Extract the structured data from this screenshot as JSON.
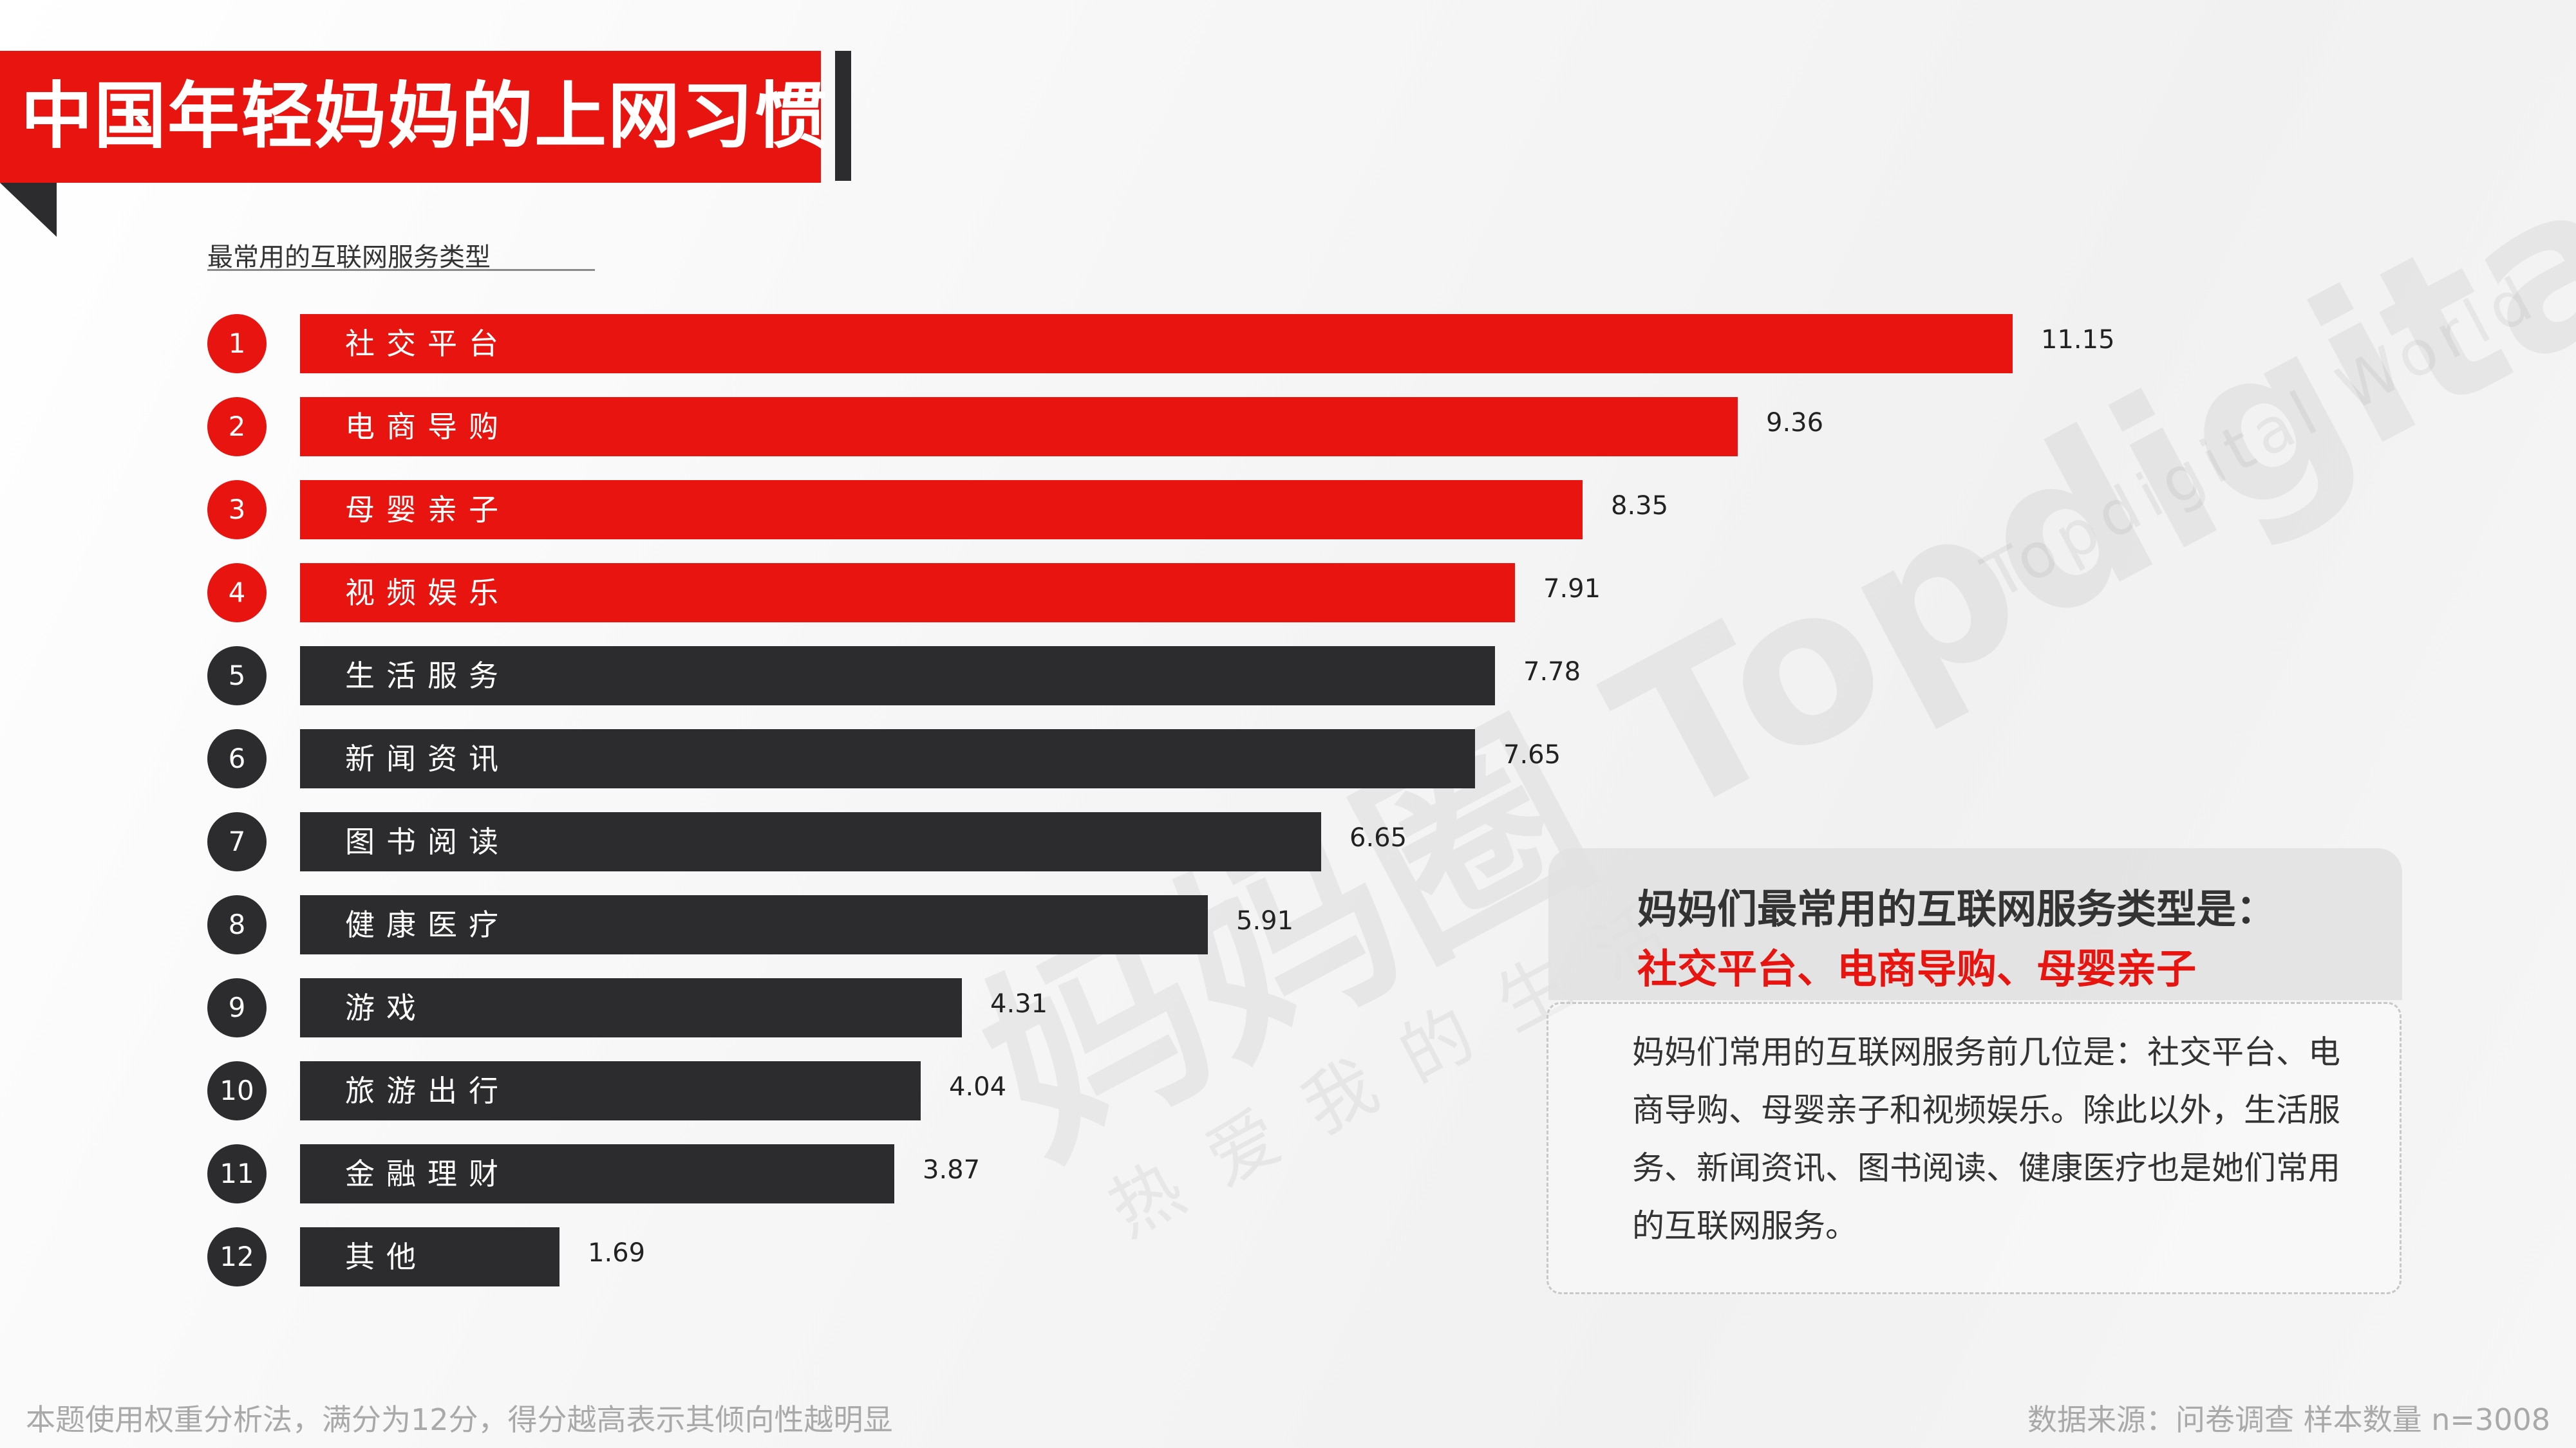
{
  "title": "中国年轻妈妈的上网习惯",
  "subtitle": "最常用的互联网服务类型",
  "colors": {
    "accent": "#e8140f",
    "dark": "#2c2c2e"
  },
  "chart_data": {
    "type": "bar",
    "orientation": "horizontal",
    "ranks": [
      "1",
      "2",
      "3",
      "4",
      "5",
      "6",
      "7",
      "8",
      "9",
      "10",
      "11",
      "12"
    ],
    "categories": [
      "社交平台",
      "电商导购",
      "母婴亲子",
      "视频娱乐",
      "生活服务",
      "新闻资讯",
      "图书阅读",
      "健康医疗",
      "游戏",
      "旅游出行",
      "金融理财",
      "其他"
    ],
    "values": [
      11.15,
      9.36,
      8.35,
      7.91,
      7.78,
      7.65,
      6.65,
      5.91,
      4.31,
      4.04,
      3.87,
      1.69
    ],
    "value_labels": [
      "11.15",
      "9.36",
      "8.35",
      "7.91",
      "7.78",
      "7.65",
      "6.65",
      "5.91",
      "4.31",
      "4.04",
      "3.87",
      "1.69"
    ],
    "highlight_top": 4,
    "xlim": [
      0,
      12
    ],
    "grid": false,
    "legend": "none"
  },
  "callout": {
    "headline": "妈妈们最常用的互联网服务类型是：",
    "highlight": "社交平台、电商导购、母婴亲子",
    "body": "妈妈们常用的互联网服务前几位是：社交平台、电商导购、母婴亲子和视频娱乐。除此以外，生活服务、新闻资讯、图书阅读、健康医疗也是她们常用的互联网服务。"
  },
  "watermark": {
    "main": "妈妈圈 Topdigital",
    "sub": "热爱我的生活",
    "world": "Topdigital World"
  },
  "footer": {
    "note": "本题使用权重分析法，满分为12分，得分越高表示其倾向性越明显",
    "source": "数据来源：问卷调查 样本数量 n=3008"
  }
}
